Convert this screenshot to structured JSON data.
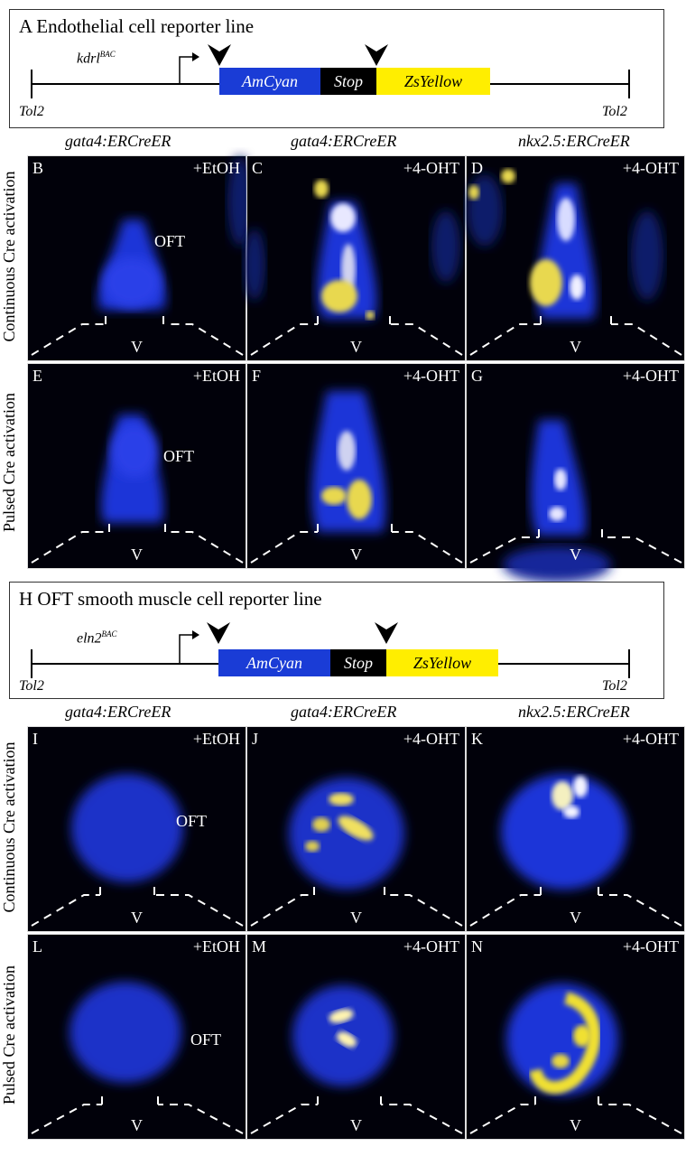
{
  "top_construct": {
    "title": "A   Endothelial cell reporter line",
    "gene": "kdrl",
    "gene_sup": "BAC",
    "tol_left": "Tol2",
    "tol_right": "Tol2",
    "seg_cyan": "AmCyan",
    "seg_stop": "Stop",
    "seg_yellow": "ZsYellow",
    "colors": {
      "cyan": "#1a3cd6",
      "stop": "#000000",
      "yellow": "#ffee00"
    }
  },
  "bottom_construct": {
    "title": "H   OFT smooth muscle cell reporter line",
    "gene": "eln2",
    "gene_sup": "BAC",
    "tol_left": "Tol2",
    "tol_right": "Tol2",
    "seg_cyan": "AmCyan",
    "seg_stop": "Stop",
    "seg_yellow": "ZsYellow"
  },
  "top_columns": [
    "gata4:ERCreER",
    "gata4:ERCreER",
    "nkx2.5:ERCreER"
  ],
  "bottom_columns": [
    "gata4:ERCreER",
    "gata4:ERCreER",
    "nkx2.5:ERCreER"
  ],
  "row_labels": {
    "top_continuous": "Continuous Cre activation",
    "top_pulsed": "Pulsed Cre activation",
    "bottom_continuous": "Continuous Cre activation",
    "bottom_pulsed": "Pulsed Cre activation"
  },
  "panels": {
    "B": {
      "label": "B",
      "treatment": "+EtOH",
      "oft": "OFT",
      "v": "V"
    },
    "C": {
      "label": "C",
      "treatment": "+4-OHT",
      "v": "V"
    },
    "D": {
      "label": "D",
      "treatment": "+4-OHT",
      "v": "V"
    },
    "E": {
      "label": "E",
      "treatment": "+EtOH",
      "oft": "OFT",
      "v": "V"
    },
    "F": {
      "label": "F",
      "treatment": "+4-OHT",
      "v": "V"
    },
    "G": {
      "label": "G",
      "treatment": "+4-OHT",
      "v": "V"
    },
    "I": {
      "label": "I",
      "treatment": "+EtOH",
      "oft": "OFT",
      "v": "V"
    },
    "J": {
      "label": "J",
      "treatment": "+4-OHT",
      "v": "V"
    },
    "K": {
      "label": "K",
      "treatment": "+4-OHT",
      "v": "V"
    },
    "L": {
      "label": "L",
      "treatment": "+EtOH",
      "oft": "OFT",
      "v": "V"
    },
    "M": {
      "label": "M",
      "treatment": "+4-OHT",
      "v": "V"
    },
    "N": {
      "label": "N",
      "treatment": "+4-OHT",
      "v": "V"
    }
  }
}
